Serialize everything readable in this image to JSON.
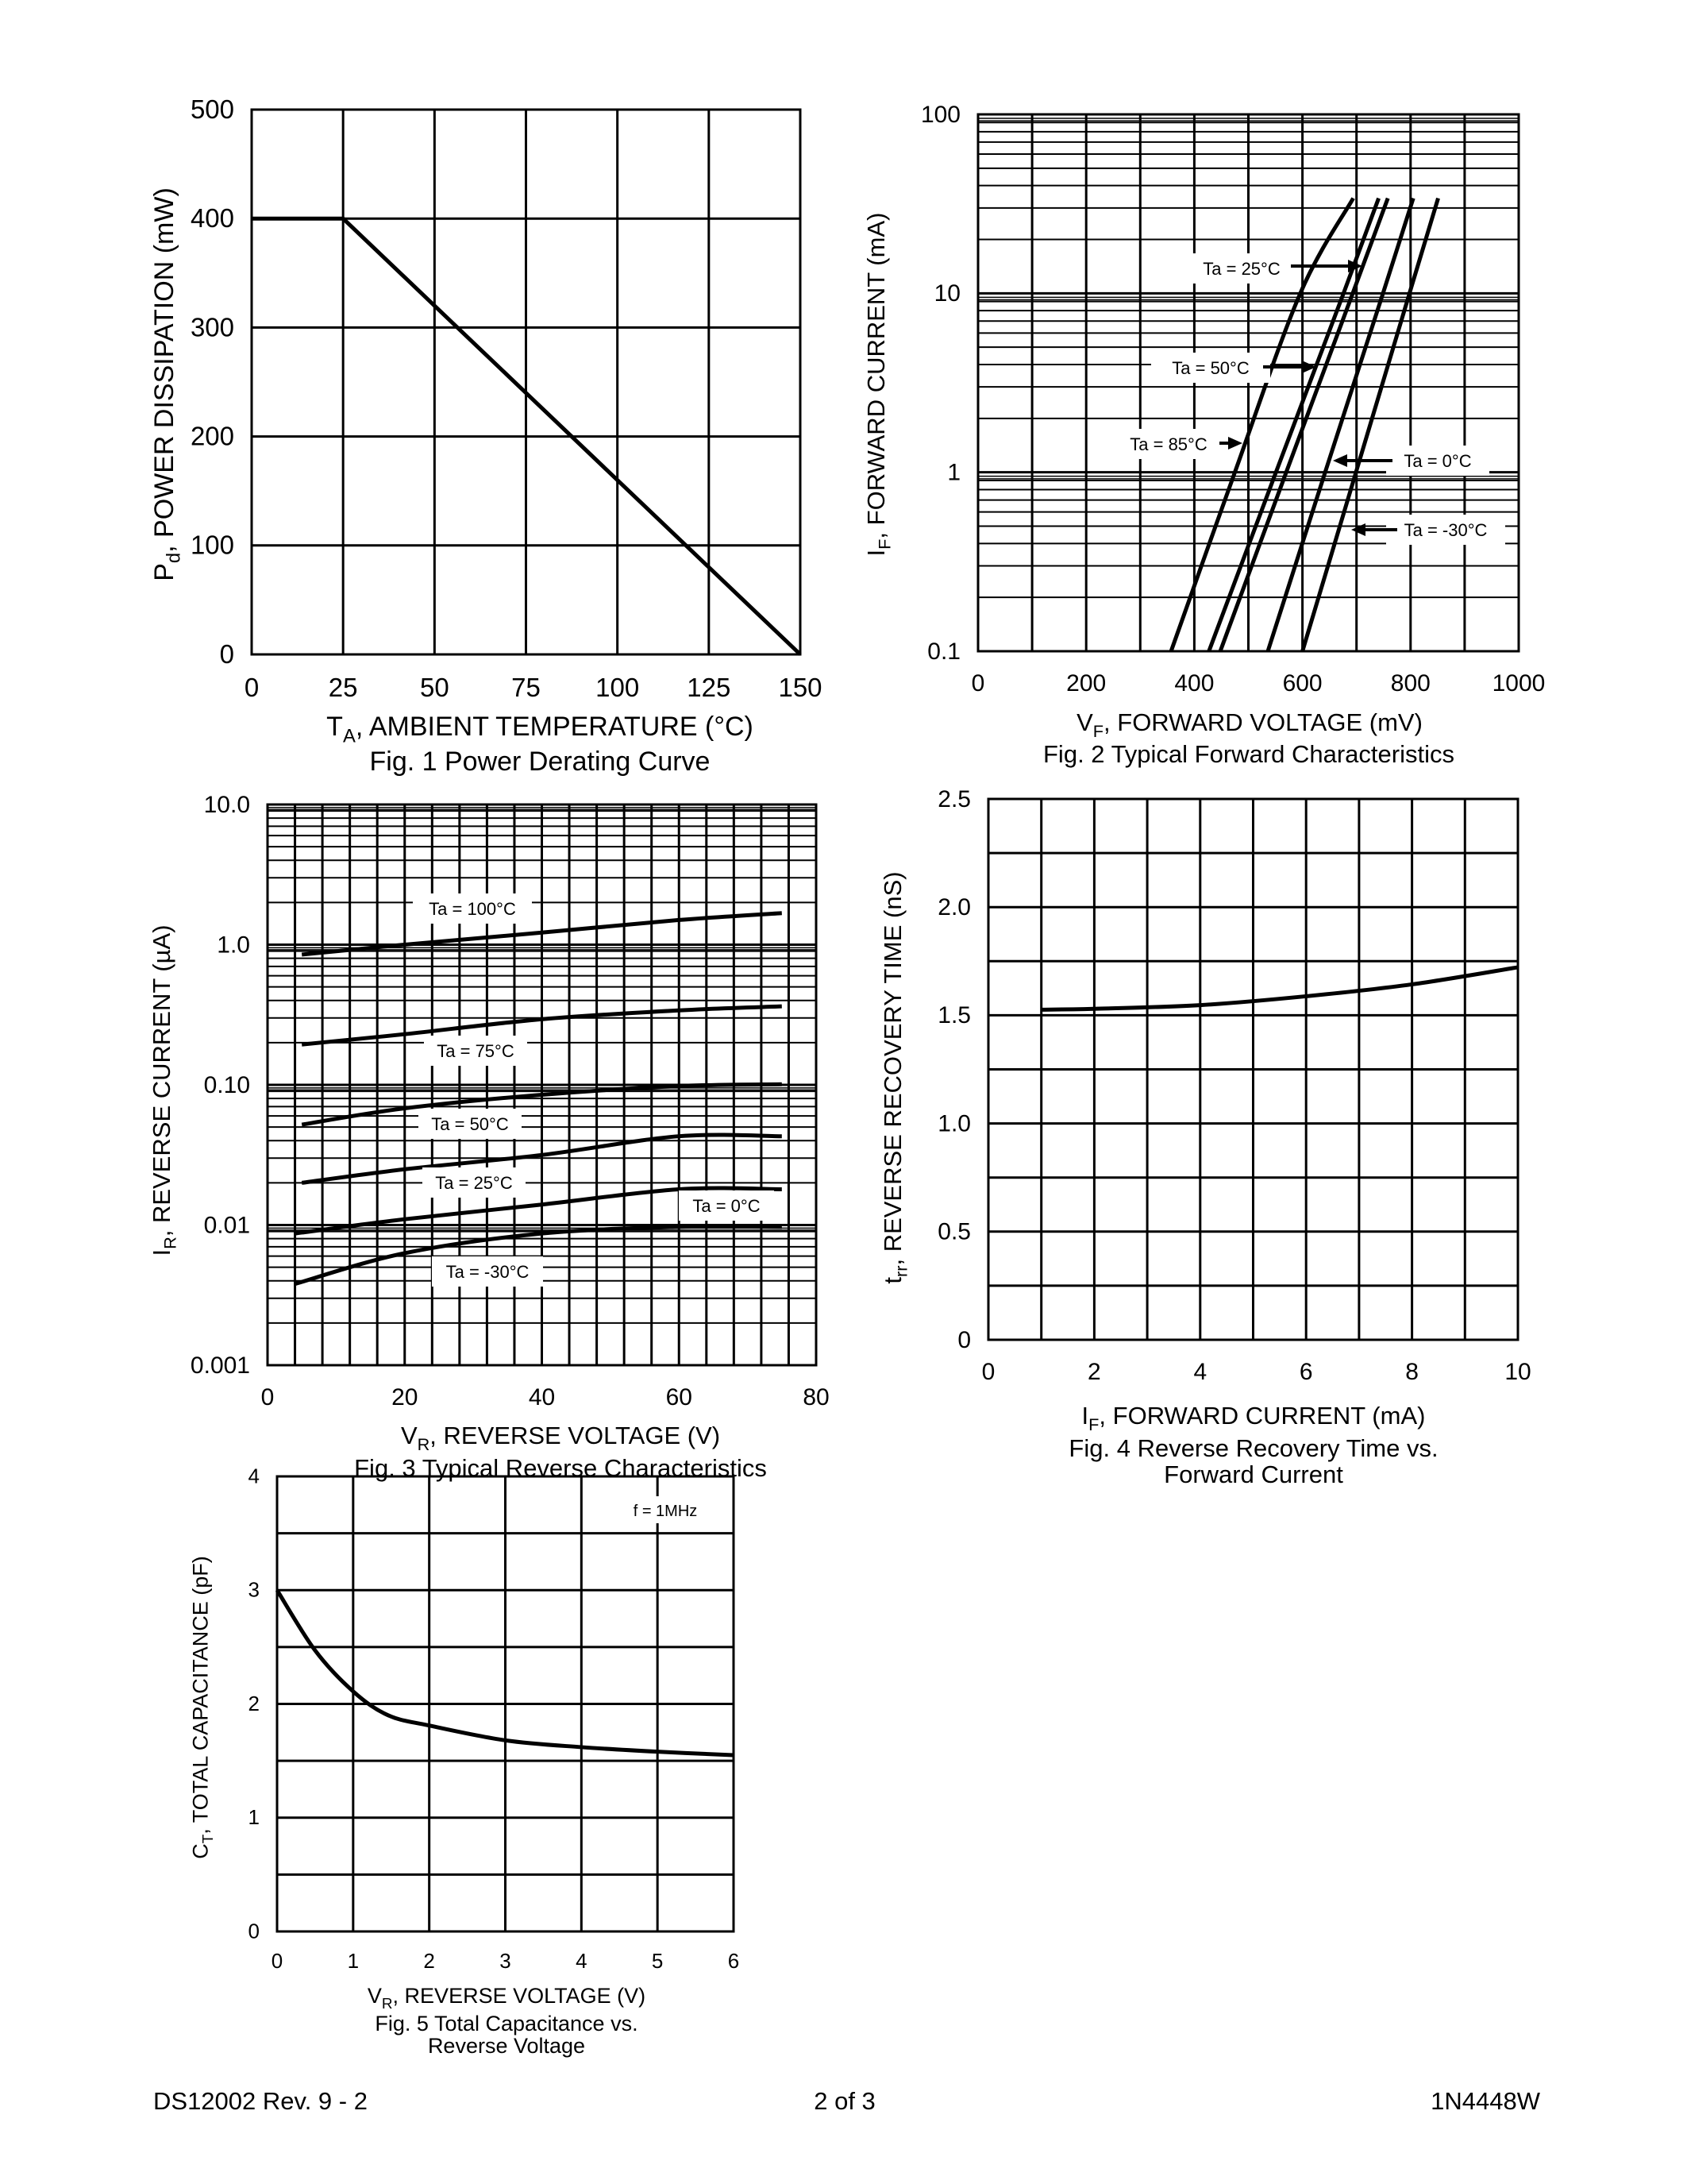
{
  "footer": {
    "left": "DS12002 Rev. 9 - 2",
    "center": "2 of 3",
    "right": "1N4448W"
  },
  "chart_data": [
    {
      "type": "line",
      "title": "Fig. 1  Power Derating Curve",
      "xlabel": {
        "symbol": "T",
        "sub": "A",
        "rest": ", AMBIENT TEMPERATURE (°C)"
      },
      "ylabel": {
        "symbol": "P",
        "sub": "d",
        "rest": ", POWER DISSIPATION (mW)"
      },
      "xlim": [
        0,
        150
      ],
      "ylim": [
        0,
        500
      ],
      "yscale": "linear",
      "grid": true,
      "xticks": [
        {
          "v": 0,
          "t": "0"
        },
        {
          "v": 25,
          "t": "25"
        },
        {
          "v": 50,
          "t": "50"
        },
        {
          "v": 75,
          "t": "75"
        },
        {
          "v": 100,
          "t": "100"
        },
        {
          "v": 125,
          "t": "125"
        },
        {
          "v": 150,
          "t": "150"
        }
      ],
      "yticks": [
        {
          "v": 0,
          "t": "0"
        },
        {
          "v": 100,
          "t": "100"
        },
        {
          "v": 200,
          "t": "200"
        },
        {
          "v": 300,
          "t": "300"
        },
        {
          "v": 400,
          "t": "400"
        },
        {
          "v": 500,
          "t": "500"
        }
      ],
      "series": [
        {
          "x": [
            0,
            25,
            150
          ],
          "y": [
            400,
            400,
            0
          ]
        }
      ],
      "annotations": []
    },
    {
      "type": "line",
      "title": "Fig. 2  Typical Forward Characteristics",
      "xlabel": {
        "symbol": "V",
        "sub": "F",
        "rest": ", FORWARD VOLTAGE (mV)"
      },
      "ylabel": {
        "symbol": "I",
        "sub": "F",
        "rest": ", FORWARD CURRENT (mA)"
      },
      "xlim": [
        0,
        1000
      ],
      "ylim": [
        0.1,
        100
      ],
      "yscale": "log",
      "grid": true,
      "xticks": [
        {
          "v": 0,
          "t": "0"
        },
        {
          "v": 200,
          "t": "200"
        },
        {
          "v": 400,
          "t": "400"
        },
        {
          "v": 600,
          "t": "600"
        },
        {
          "v": 800,
          "t": "800"
        },
        {
          "v": 1000,
          "t": "1000"
        }
      ],
      "yticks": [
        {
          "v": 0.1,
          "t": "0.1"
        },
        {
          "v": 1,
          "t": "1"
        },
        {
          "v": 10,
          "t": "10"
        },
        {
          "v": 100,
          "t": "100"
        }
      ],
      "series": [
        {
          "name": "Ta = 85°C",
          "x": [
            357,
            475,
            596,
            694
          ],
          "y": [
            0.1,
            1,
            10,
            34
          ]
        },
        {
          "name": "Ta = 50°C",
          "x": [
            427,
            551,
            676,
            741
          ],
          "y": [
            0.1,
            1,
            10,
            34
          ]
        },
        {
          "name": "Ta = 25°C",
          "x": [
            448,
            570,
            693,
            758
          ],
          "y": [
            0.1,
            1,
            10,
            34
          ]
        },
        {
          "name": "Ta = 0°C",
          "x": [
            536,
            642,
            749,
            805
          ],
          "y": [
            0.1,
            1,
            10,
            34
          ]
        },
        {
          "name": "Ta = -30°C",
          "x": [
            600,
            699,
            798,
            851
          ],
          "y": [
            0.1,
            1,
            10,
            34
          ]
        }
      ],
      "annotations": [
        "Ta = 25°C",
        "Ta = 50°C",
        "Ta = 85°C",
        "Ta = 0°C",
        "Ta = -30°C"
      ]
    },
    {
      "type": "line",
      "title": "Fig. 3  Typical Reverse Characteristics",
      "xlabel": {
        "symbol": "V",
        "sub": "R",
        "rest": ", REVERSE VOLTAGE (V)"
      },
      "ylabel": {
        "symbol": "I",
        "sub": "R",
        "rest": ", REVERSE CURRENT (µA)"
      },
      "xlim": [
        0,
        80
      ],
      "ylim": [
        0.001,
        10
      ],
      "yscale": "log",
      "grid": true,
      "xticks": [
        {
          "v": 0,
          "t": "0"
        },
        {
          "v": 20,
          "t": "20"
        },
        {
          "v": 40,
          "t": "40"
        },
        {
          "v": 60,
          "t": "60"
        },
        {
          "v": 80,
          "t": "80"
        }
      ],
      "yticks": [
        {
          "v": 0.001,
          "t": "0.001"
        },
        {
          "v": 0.01,
          "t": "0.01"
        },
        {
          "v": 0.1,
          "t": "0.10"
        },
        {
          "v": 1,
          "t": "1.0"
        },
        {
          "v": 10,
          "t": "10.0"
        }
      ],
      "series": [
        {
          "name": "Ta = 100°C",
          "x": [
            5,
            20,
            40,
            60,
            75
          ],
          "y": [
            0.85,
            1.0,
            1.22,
            1.5,
            1.68
          ]
        },
        {
          "name": "Ta = 75°C",
          "x": [
            5,
            20,
            40,
            60,
            75
          ],
          "y": [
            0.194,
            0.23,
            0.294,
            0.34,
            0.363
          ]
        },
        {
          "name": "Ta = 50°C",
          "x": [
            5,
            20,
            40,
            60,
            75
          ],
          "y": [
            0.052,
            0.068,
            0.085,
            0.098,
            0.101
          ]
        },
        {
          "name": "Ta = 25°C",
          "x": [
            5,
            20,
            40,
            60,
            75
          ],
          "y": [
            0.02,
            0.025,
            0.0316,
            0.043,
            0.043
          ]
        },
        {
          "name": "Ta = 0°C",
          "x": [
            4,
            20,
            40,
            60,
            75
          ],
          "y": [
            0.0087,
            0.011,
            0.014,
            0.018,
            0.018
          ]
        },
        {
          "name": "Ta = -30°C",
          "x": [
            4,
            20,
            40,
            60,
            75
          ],
          "y": [
            0.0038,
            0.0063,
            0.0087,
            0.0097,
            0.0097
          ]
        }
      ],
      "annotations": [
        "Ta = 100°C",
        "Ta = 75°C",
        "Ta = 50°C",
        "Ta = 25°C",
        "Ta = 0°C",
        "Ta = -30°C"
      ]
    },
    {
      "type": "line",
      "title": "Fig. 4  Reverse Recovery Time vs.",
      "title2": "Forward Current",
      "xlabel": {
        "symbol": "I",
        "sub": "F",
        "rest": ", FORWARD CURRENT (mA)"
      },
      "ylabel": {
        "symbol": "t",
        "sub": "rr",
        "rest": ", REVERSE RECOVERY TIME (nS)"
      },
      "xlim": [
        0,
        10
      ],
      "ylim": [
        0,
        2.5
      ],
      "yscale": "linear",
      "grid": true,
      "xticks": [
        {
          "v": 0,
          "t": "0"
        },
        {
          "v": 2,
          "t": "2"
        },
        {
          "v": 4,
          "t": "4"
        },
        {
          "v": 6,
          "t": "6"
        },
        {
          "v": 8,
          "t": "8"
        },
        {
          "v": 10,
          "t": "10"
        }
      ],
      "yticks": [
        {
          "v": 0,
          "t": "0"
        },
        {
          "v": 0.5,
          "t": "0.5"
        },
        {
          "v": 1.0,
          "t": "1.0"
        },
        {
          "v": 1.5,
          "t": "1.5"
        },
        {
          "v": 2.0,
          "t": "2.0"
        },
        {
          "v": 2.5,
          "t": "2.5"
        }
      ],
      "series": [
        {
          "x": [
            1,
            2,
            4,
            6,
            8,
            10
          ],
          "y": [
            1.526,
            1.53,
            1.547,
            1.588,
            1.643,
            1.722
          ]
        }
      ],
      "annotations": []
    },
    {
      "type": "line",
      "title": "Fig. 5  Total Capacitance vs.",
      "title2": "Reverse Voltage",
      "xlabel": {
        "symbol": "V",
        "sub": "R",
        "rest": ", REVERSE VOLTAGE (V)"
      },
      "ylabel": {
        "symbol": "C",
        "sub": "T",
        "rest": ", TOTAL CAPACITANCE (pF)"
      },
      "xlim": [
        0,
        6
      ],
      "ylim": [
        0,
        4
      ],
      "yscale": "linear",
      "grid": true,
      "xticks": [
        {
          "v": 0,
          "t": "0"
        },
        {
          "v": 1,
          "t": "1"
        },
        {
          "v": 2,
          "t": "2"
        },
        {
          "v": 3,
          "t": "3"
        },
        {
          "v": 4,
          "t": "4"
        },
        {
          "v": 5,
          "t": "5"
        },
        {
          "v": 6,
          "t": "6"
        }
      ],
      "yticks": [
        {
          "v": 0,
          "t": "0"
        },
        {
          "v": 1,
          "t": "1"
        },
        {
          "v": 2,
          "t": "2"
        },
        {
          "v": 3,
          "t": "3"
        },
        {
          "v": 4,
          "t": "4"
        }
      ],
      "series": [
        {
          "x": [
            0,
            0.5,
            1,
            1.46,
            2,
            3,
            4,
            5,
            6
          ],
          "y": [
            3.0,
            2.47,
            2.11,
            1.9,
            1.81,
            1.68,
            1.62,
            1.58,
            1.55
          ]
        }
      ],
      "annotations": [
        "f = 1MHz"
      ]
    }
  ]
}
